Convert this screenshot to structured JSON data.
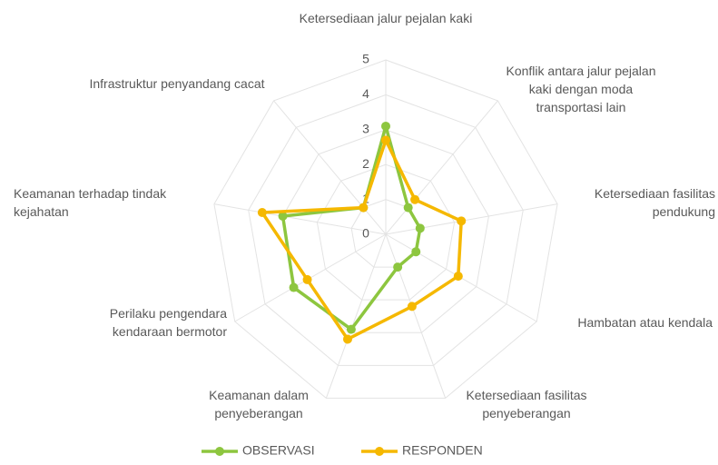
{
  "chart_data": {
    "type": "radar",
    "categories": [
      "Ketersediaan jalur pejalan kaki",
      "Konflik antara jalur pejalan kaki dengan moda transportasi lain",
      "Ketersediaan fasilitas pendukung",
      "Hambatan atau kendala",
      "Ketersediaan fasilitas penyeberangan",
      "Keamanan dalam penyeberangan",
      "Perilaku pengendara kendaraan bermotor",
      "Keamanan terhadap tindak kejahatan",
      "Infrastruktur penyandang cacat"
    ],
    "series": [
      {
        "name": "OBSERVASI",
        "color": "#8dc63f",
        "values": [
          3.1,
          1.0,
          1.0,
          1.0,
          1.0,
          2.9,
          3.05,
          3.0,
          1.0
        ]
      },
      {
        "name": "RESPONDEN",
        "color": "#f5b800",
        "values": [
          2.7,
          1.3,
          2.2,
          2.4,
          2.2,
          3.2,
          2.6,
          3.6,
          1.0
        ]
      }
    ],
    "ylim": [
      0,
      5
    ],
    "yticks": [
      0,
      1,
      2,
      3,
      4,
      5
    ],
    "grid": true,
    "legend": "bottom"
  }
}
